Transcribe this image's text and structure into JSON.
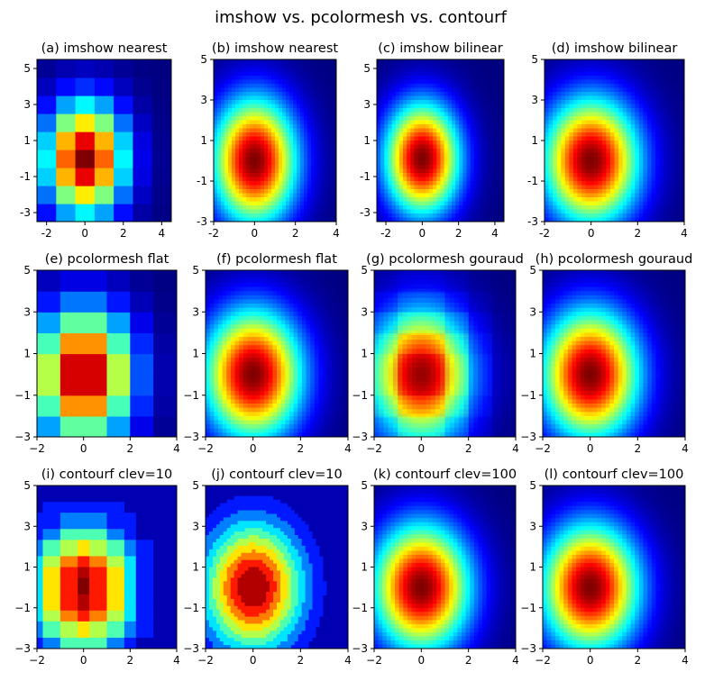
{
  "figure": {
    "title": "imshow vs. pcolormesh vs. contourf"
  },
  "colormap": {
    "name": "jet",
    "stops": [
      "#00007f",
      "#0000ff",
      "#007fff",
      "#00ffff",
      "#7fff7f",
      "#ffff00",
      "#ff7f00",
      "#ff0000",
      "#7f0000"
    ]
  },
  "chart_data": [
    {
      "id": "a",
      "type": "heatmap",
      "method": "imshow",
      "mode": "nearest",
      "title": "(a) imshow nearest",
      "xlim": [
        -2.5,
        4.5
      ],
      "ylim": [
        -3.5,
        5.5
      ],
      "xticks": [
        {
          "v": -2,
          "label": "-2"
        },
        {
          "v": 0,
          "label": "0"
        },
        {
          "v": 2,
          "label": "2"
        },
        {
          "v": 4,
          "label": "4"
        }
      ],
      "yticks": [
        {
          "v": -3,
          "label": "-3"
        },
        {
          "v": -1,
          "label": "-1"
        },
        {
          "v": 1,
          "label": "1"
        },
        {
          "v": 3,
          "label": "3"
        },
        {
          "v": 5,
          "label": "5"
        }
      ],
      "grid": false,
      "field": "exp(-(x^2/4 + y^2/9)) on integer grid x=-2..4, y=-3..5"
    },
    {
      "id": "b",
      "type": "heatmap",
      "method": "imshow",
      "mode": "nearest-fine",
      "title": "(b) imshow nearest",
      "xlim": [
        -2,
        4
      ],
      "ylim": [
        -3,
        5
      ],
      "xticks": [
        {
          "v": -2,
          "label": "-2"
        },
        {
          "v": 0,
          "label": "0"
        },
        {
          "v": 2,
          "label": "2"
        },
        {
          "v": 4,
          "label": "4"
        }
      ],
      "yticks": [
        {
          "v": -3,
          "label": "-3"
        },
        {
          "v": -1,
          "label": "-1"
        },
        {
          "v": 1,
          "label": "1"
        },
        {
          "v": 3,
          "label": "3"
        },
        {
          "v": 5,
          "label": "5"
        }
      ],
      "grid": false,
      "field": "exp(-(x^2/4 + y^2/9))"
    },
    {
      "id": "c",
      "type": "heatmap",
      "method": "imshow",
      "mode": "bilinear",
      "title": "(c) imshow bilinear",
      "xlim": [
        -2.5,
        4.5
      ],
      "ylim": [
        -3.5,
        5.5
      ],
      "xticks": [
        {
          "v": -2,
          "label": "-2"
        },
        {
          "v": 0,
          "label": "0"
        },
        {
          "v": 2,
          "label": "2"
        },
        {
          "v": 4,
          "label": "4"
        }
      ],
      "yticks": [
        {
          "v": -3,
          "label": "-3"
        },
        {
          "v": -1,
          "label": "-1"
        },
        {
          "v": 1,
          "label": "1"
        },
        {
          "v": 3,
          "label": "3"
        },
        {
          "v": 5,
          "label": "5"
        }
      ],
      "grid": false,
      "field": "exp(-(x^2/4 + y^2/9))"
    },
    {
      "id": "d",
      "type": "heatmap",
      "method": "imshow",
      "mode": "bilinear",
      "title": "(d) imshow bilinear",
      "xlim": [
        -2,
        4
      ],
      "ylim": [
        -3,
        5
      ],
      "xticks": [
        {
          "v": -2,
          "label": "-2"
        },
        {
          "v": 0,
          "label": "0"
        },
        {
          "v": 2,
          "label": "2"
        },
        {
          "v": 4,
          "label": "4"
        }
      ],
      "yticks": [
        {
          "v": -3,
          "label": "-3"
        },
        {
          "v": -1,
          "label": "-1"
        },
        {
          "v": 1,
          "label": "1"
        },
        {
          "v": 3,
          "label": "3"
        },
        {
          "v": 5,
          "label": "5"
        }
      ],
      "grid": false,
      "field": "exp(-(x^2/4 + y^2/9))"
    },
    {
      "id": "e",
      "type": "heatmap",
      "method": "pcolormesh",
      "mode": "flat",
      "title": "(e) pcolormesh flat",
      "xlim": [
        -2,
        4
      ],
      "ylim": [
        -3,
        5
      ],
      "xticks": [
        {
          "v": -2,
          "label": "−2"
        },
        {
          "v": 0,
          "label": "0"
        },
        {
          "v": 2,
          "label": "2"
        },
        {
          "v": 4,
          "label": "4"
        }
      ],
      "yticks": [
        {
          "v": -3,
          "label": "−3"
        },
        {
          "v": -1,
          "label": "−1"
        },
        {
          "v": 1,
          "label": "1"
        },
        {
          "v": 3,
          "label": "3"
        },
        {
          "v": 5,
          "label": "5"
        }
      ],
      "grid": false,
      "field": "exp(-(x^2/4 + y^2/9)) cell-centred"
    },
    {
      "id": "f",
      "type": "heatmap",
      "method": "pcolormesh",
      "mode": "flat-fine",
      "title": "(f) pcolormesh flat",
      "xlim": [
        -2,
        4
      ],
      "ylim": [
        -3,
        5
      ],
      "xticks": [
        {
          "v": -2,
          "label": "−2"
        },
        {
          "v": 0,
          "label": "0"
        },
        {
          "v": 2,
          "label": "2"
        },
        {
          "v": 4,
          "label": "4"
        }
      ],
      "yticks": [
        {
          "v": -3,
          "label": "−3"
        },
        {
          "v": -1,
          "label": "−1"
        },
        {
          "v": 1,
          "label": "1"
        },
        {
          "v": 3,
          "label": "3"
        },
        {
          "v": 5,
          "label": "5"
        }
      ],
      "grid": false,
      "field": "exp(-(x^2/4 + y^2/9))"
    },
    {
      "id": "g",
      "type": "heatmap",
      "method": "pcolormesh",
      "mode": "gouraud-blend",
      "title": "(g) pcolormesh gouraud",
      "xlim": [
        -2,
        4
      ],
      "ylim": [
        -3,
        5
      ],
      "xticks": [
        {
          "v": -2,
          "label": "−2"
        },
        {
          "v": 0,
          "label": "0"
        },
        {
          "v": 2,
          "label": "2"
        },
        {
          "v": 4,
          "label": "4"
        }
      ],
      "yticks": [
        {
          "v": -3,
          "label": "−3"
        },
        {
          "v": -1,
          "label": "−1"
        },
        {
          "v": 1,
          "label": "1"
        },
        {
          "v": 3,
          "label": "3"
        },
        {
          "v": 5,
          "label": "5"
        }
      ],
      "grid": false,
      "field": "exp(-(x^2/4 + y^2/9))"
    },
    {
      "id": "h",
      "type": "heatmap",
      "method": "pcolormesh",
      "mode": "gouraud",
      "title": "(h) pcolormesh gouraud",
      "xlim": [
        -2,
        4
      ],
      "ylim": [
        -3,
        5
      ],
      "xticks": [
        {
          "v": -2,
          "label": "−2"
        },
        {
          "v": 0,
          "label": "0"
        },
        {
          "v": 2,
          "label": "2"
        },
        {
          "v": 4,
          "label": "4"
        }
      ],
      "yticks": [
        {
          "v": -3,
          "label": "−3"
        },
        {
          "v": -1,
          "label": "−1"
        },
        {
          "v": 1,
          "label": "1"
        },
        {
          "v": 3,
          "label": "3"
        },
        {
          "v": 5,
          "label": "5"
        }
      ],
      "grid": false,
      "field": "exp(-(x^2/4 + y^2/9))"
    },
    {
      "id": "i",
      "type": "heatmap",
      "method": "contourf",
      "mode": "contour-coarse",
      "levels": 10,
      "title": "(i) contourf clev=10",
      "xlim": [
        -2,
        4
      ],
      "ylim": [
        -3,
        5
      ],
      "xticks": [
        {
          "v": -2,
          "label": "−2"
        },
        {
          "v": 0,
          "label": "0"
        },
        {
          "v": 2,
          "label": "2"
        },
        {
          "v": 4,
          "label": "4"
        }
      ],
      "yticks": [
        {
          "v": -3,
          "label": "−3"
        },
        {
          "v": -1,
          "label": "−1"
        },
        {
          "v": 1,
          "label": "1"
        },
        {
          "v": 3,
          "label": "3"
        },
        {
          "v": 5,
          "label": "5"
        }
      ],
      "grid": false,
      "field": "exp(-(x^2/4 + y^2/9))"
    },
    {
      "id": "j",
      "type": "heatmap",
      "method": "contourf",
      "mode": "contour",
      "levels": 10,
      "title": "(j) contourf clev=10",
      "xlim": [
        -2,
        4
      ],
      "ylim": [
        -3,
        5
      ],
      "xticks": [
        {
          "v": -2,
          "label": "−2"
        },
        {
          "v": 0,
          "label": "0"
        },
        {
          "v": 2,
          "label": "2"
        },
        {
          "v": 4,
          "label": "4"
        }
      ],
      "yticks": [
        {
          "v": -3,
          "label": "−3"
        },
        {
          "v": -1,
          "label": "−1"
        },
        {
          "v": 1,
          "label": "1"
        },
        {
          "v": 3,
          "label": "3"
        },
        {
          "v": 5,
          "label": "5"
        }
      ],
      "grid": false,
      "field": "exp(-(x^2/4 + y^2/9))"
    },
    {
      "id": "k",
      "type": "heatmap",
      "method": "contourf",
      "mode": "contour",
      "levels": 100,
      "title": "(k) contourf clev=100",
      "xlim": [
        -2,
        4
      ],
      "ylim": [
        -3,
        5
      ],
      "xticks": [
        {
          "v": -2,
          "label": "−2"
        },
        {
          "v": 0,
          "label": "0"
        },
        {
          "v": 2,
          "label": "2"
        },
        {
          "v": 4,
          "label": "4"
        }
      ],
      "yticks": [
        {
          "v": -3,
          "label": "−3"
        },
        {
          "v": -1,
          "label": "−1"
        },
        {
          "v": 1,
          "label": "1"
        },
        {
          "v": 3,
          "label": "3"
        },
        {
          "v": 5,
          "label": "5"
        }
      ],
      "grid": false,
      "field": "exp(-(x^2/4 + y^2/9))"
    },
    {
      "id": "l",
      "type": "heatmap",
      "method": "contourf",
      "mode": "contour",
      "levels": 100,
      "title": "(l) contourf clev=100",
      "xlim": [
        -2,
        4
      ],
      "ylim": [
        -3,
        5
      ],
      "xticks": [
        {
          "v": -2,
          "label": "−2"
        },
        {
          "v": 0,
          "label": "0"
        },
        {
          "v": 2,
          "label": "2"
        },
        {
          "v": 4,
          "label": "4"
        }
      ],
      "yticks": [
        {
          "v": -3,
          "label": "−3"
        },
        {
          "v": -1,
          "label": "−1"
        },
        {
          "v": 1,
          "label": "1"
        },
        {
          "v": 3,
          "label": "3"
        },
        {
          "v": 5,
          "label": "5"
        }
      ],
      "grid": false,
      "field": "exp(-(x^2/4 + y^2/9))"
    }
  ]
}
